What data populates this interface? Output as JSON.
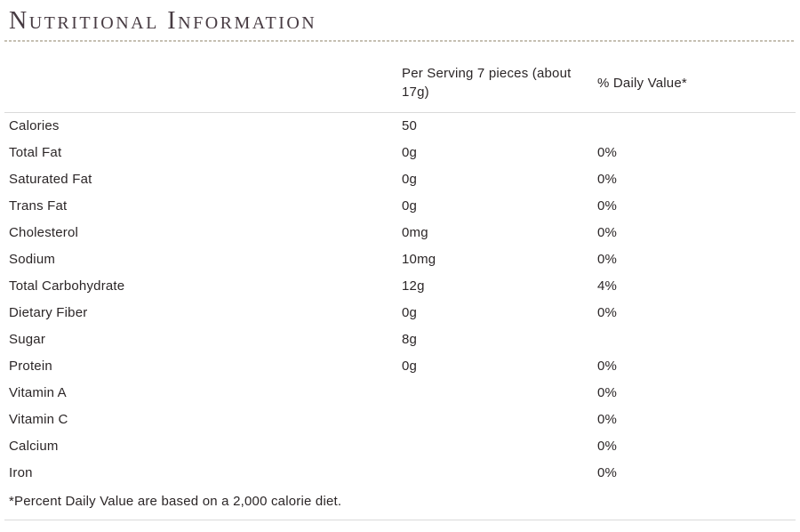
{
  "section": {
    "title": "Nutritional Information"
  },
  "table": {
    "headers": {
      "nutrient": "",
      "serving": "Per Serving 7 pieces (about 17g)",
      "daily_value": "% Daily Value*"
    },
    "rows": [
      {
        "label": "Calories",
        "value": "50",
        "dv": ""
      },
      {
        "label": "Total Fat",
        "value": "0g",
        "dv": "0%"
      },
      {
        "label": "Saturated Fat",
        "value": "0g",
        "dv": "0%"
      },
      {
        "label": "Trans Fat",
        "value": "0g",
        "dv": "0%"
      },
      {
        "label": "Cholesterol",
        "value": "0mg",
        "dv": "0%"
      },
      {
        "label": "Sodium",
        "value": "10mg",
        "dv": "0%"
      },
      {
        "label": "Total Carbohydrate",
        "value": "12g",
        "dv": "4%"
      },
      {
        "label": "Dietary Fiber",
        "value": "0g",
        "dv": "0%"
      },
      {
        "label": "Sugar",
        "value": "8g",
        "dv": ""
      },
      {
        "label": "Protein",
        "value": "0g",
        "dv": "0%"
      },
      {
        "label": "Vitamin A",
        "value": "",
        "dv": "0%"
      },
      {
        "label": "Vitamin C",
        "value": "",
        "dv": "0%"
      },
      {
        "label": "Calcium",
        "value": "",
        "dv": "0%"
      },
      {
        "label": "Iron",
        "value": "",
        "dv": "0%"
      }
    ],
    "footnote": "*Percent Daily Value are based on a 2,000 calorie diet."
  },
  "colors": {
    "title_text": "#473b42",
    "body_text": "#2b2627",
    "dotted_divider": "#c6c0b3",
    "solid_divider": "#dadada",
    "background": "#ffffff"
  }
}
